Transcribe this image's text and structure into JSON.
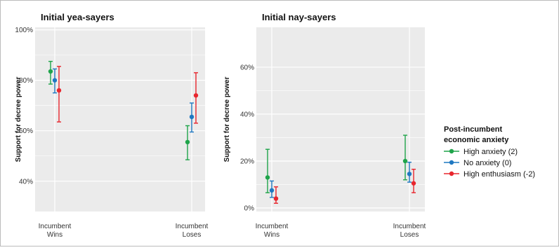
{
  "chart_data": [
    {
      "type": "errorbar",
      "title": "Initial yea-sayers",
      "ylabel": "Support for decree power",
      "xlabel": "",
      "categories": [
        "Incumbent\nWins",
        "Incumbent\nLoses"
      ],
      "ylim": [
        28,
        101
      ],
      "yticks": [
        "40%",
        "60%",
        "80%",
        "100%"
      ],
      "ytick_values": [
        40,
        60,
        80,
        100
      ],
      "grid": true,
      "series": [
        {
          "name": "High anxiety (2)",
          "color": "#1fa44a",
          "values": [
            {
              "category": "Incumbent\nWins",
              "mean": 83.5,
              "low": 78.5,
              "high": 87.5
            },
            {
              "category": "Incumbent\nLoses",
              "mean": 55.5,
              "low": 48.5,
              "high": 62.0
            }
          ]
        },
        {
          "name": "No anxiety (0)",
          "color": "#1f78c1",
          "values": [
            {
              "category": "Incumbent\nWins",
              "mean": 80.0,
              "low": 75.0,
              "high": 84.5
            },
            {
              "category": "Incumbent\nLoses",
              "mean": 65.5,
              "low": 59.5,
              "high": 71.0
            }
          ]
        },
        {
          "name": "High enthusiasm (-2)",
          "color": "#e8262e",
          "values": [
            {
              "category": "Incumbent\nWins",
              "mean": 76.0,
              "low": 63.5,
              "high": 85.5
            },
            {
              "category": "Incumbent\nLoses",
              "mean": 74.0,
              "low": 63.0,
              "high": 83.0
            }
          ]
        }
      ]
    },
    {
      "type": "errorbar",
      "title": "Initial nay-sayers",
      "ylabel": "Support for decree power",
      "xlabel": "",
      "categories": [
        "Incumbent\nWins",
        "Incumbent\nLoses"
      ],
      "ylim": [
        -1.5,
        77
      ],
      "yticks": [
        "0%",
        "20%",
        "40%",
        "60%"
      ],
      "ytick_values": [
        0,
        20,
        40,
        60
      ],
      "grid": true,
      "series": [
        {
          "name": "High anxiety (2)",
          "color": "#1fa44a",
          "values": [
            {
              "category": "Incumbent\nWins",
              "mean": 13.0,
              "low": 6.5,
              "high": 25.0
            },
            {
              "category": "Incumbent\nLoses",
              "mean": 20.0,
              "low": 12.0,
              "high": 31.0
            }
          ]
        },
        {
          "name": "No anxiety (0)",
          "color": "#1f78c1",
          "values": [
            {
              "category": "Incumbent\nWins",
              "mean": 7.5,
              "low": 4.5,
              "high": 11.5
            },
            {
              "category": "Incumbent\nLoses",
              "mean": 14.5,
              "low": 11.0,
              "high": 19.5
            }
          ]
        },
        {
          "name": "High enthusiasm (-2)",
          "color": "#e8262e",
          "values": [
            {
              "category": "Incumbent\nWins",
              "mean": 4.0,
              "low": 2.0,
              "high": 9.0
            },
            {
              "category": "Incumbent\nLoses",
              "mean": 10.5,
              "low": 6.5,
              "high": 16.5
            }
          ]
        }
      ]
    }
  ],
  "legend": {
    "title_line1": "Post-incumbent",
    "title_line2": "economic anxiety",
    "placement": "right",
    "items": [
      {
        "label": "High anxiety (2)",
        "color": "#1fa44a"
      },
      {
        "label": "No anxiety (0)",
        "color": "#1f78c1"
      },
      {
        "label": "High enthusiasm (-2)",
        "color": "#e8262e"
      }
    ]
  },
  "panel_background": "#ebebeb",
  "gridline_color": "#ffffff"
}
